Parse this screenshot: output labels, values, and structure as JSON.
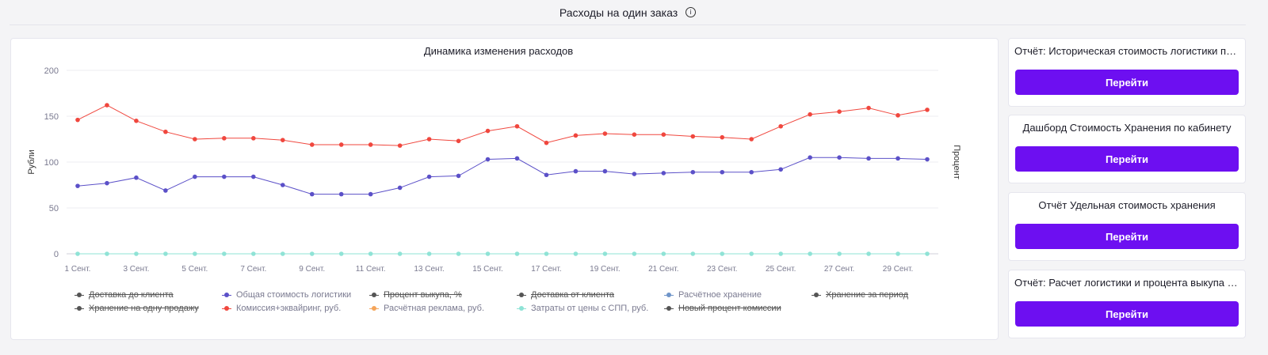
{
  "header": {
    "title": "Расходы на один заказ",
    "info_icon": "info-icon"
  },
  "chart_data": {
    "type": "line",
    "title": "Динамика изменения расходов",
    "ylabel": "Рубли",
    "y2label": "Процент",
    "ylim": [
      0,
      200
    ],
    "yticks": [
      0,
      50,
      100,
      150,
      200
    ],
    "x": [
      "1 Сент.",
      "2 Сент.",
      "3 Сент.",
      "4 Сент.",
      "5 Сент.",
      "6 Сент.",
      "7 Сент.",
      "8 Сент.",
      "9 Сент.",
      "10 Сент.",
      "11 Сент.",
      "12 Сент.",
      "13 Сент.",
      "14 Сент.",
      "15 Сент.",
      "16 Сент.",
      "17 Сент.",
      "18 Сент.",
      "19 Сент.",
      "20 Сент.",
      "21 Сент.",
      "22 Сент.",
      "23 Сент.",
      "24 Сент.",
      "25 Сент.",
      "26 Сент.",
      "27 Сент.",
      "28 Сент.",
      "29 Сент.",
      "30 Сент."
    ],
    "xtick_labels": [
      "1 Сент.",
      "3 Сент.",
      "5 Сент.",
      "7 Сент.",
      "9 Сент.",
      "11 Сент.",
      "13 Сент.",
      "15 Сент.",
      "17 Сент.",
      "19 Сент.",
      "21 Сент.",
      "23 Сент.",
      "25 Сент.",
      "27 Сент.",
      "29 Сент."
    ],
    "grid": true,
    "legend_position": "bottom",
    "series": [
      {
        "name": "Комиссия+эквайринг, руб.",
        "color": "#f0473e",
        "values": [
          146,
          162,
          145,
          133,
          125,
          126,
          126,
          124,
          119,
          119,
          119,
          118,
          125,
          123,
          134,
          139,
          121,
          129,
          131,
          130,
          130,
          128,
          127,
          125,
          139,
          152,
          155,
          159,
          151,
          157
        ]
      },
      {
        "name": "Общая стоимость логистики",
        "color": "#5b50c8",
        "values": [
          74,
          77,
          83,
          69,
          84,
          84,
          84,
          75,
          65,
          65,
          65,
          72,
          84,
          85,
          103,
          104,
          86,
          90,
          90,
          87,
          88,
          89,
          89,
          89,
          92,
          105,
          105,
          104,
          104,
          103
        ]
      },
      {
        "name": "Затраты от цены с СПП, руб.",
        "color": "#8fe3d6",
        "values": [
          0,
          0,
          0,
          0,
          0,
          0,
          0,
          0,
          0,
          0,
          0,
          0,
          0,
          0,
          0,
          0,
          0,
          0,
          0,
          0,
          0,
          0,
          0,
          0,
          0,
          0,
          0,
          0,
          0,
          0
        ]
      }
    ],
    "legend": [
      {
        "label": "Доставка до клиента",
        "color": "#555555",
        "active": false
      },
      {
        "label": "Общая стоимость логистики",
        "color": "#5b50c8",
        "active": true
      },
      {
        "label": "Процент выкупа, %",
        "color": "#555555",
        "active": false
      },
      {
        "label": "Доставка от клиента",
        "color": "#555555",
        "active": false
      },
      {
        "label": "Расчётное хранение",
        "color": "#6f95c9",
        "active": true
      },
      {
        "label": "Хранение за период",
        "color": "#555555",
        "active": false
      },
      {
        "label": "Хранение на одну продажу",
        "color": "#555555",
        "active": false
      },
      {
        "label": "Комиссия+эквайринг, руб.",
        "color": "#f0473e",
        "active": true
      },
      {
        "label": "Расчётная реклама, руб.",
        "color": "#f5a55a",
        "active": true
      },
      {
        "label": "Затраты от цены с СПП, руб.",
        "color": "#8fe3d6",
        "active": true
      },
      {
        "label": "Новый процент комиссии",
        "color": "#555555",
        "active": false
      }
    ]
  },
  "side_cards": [
    {
      "title": "Отчёт: Историческая стоимость логистики по номенклатурам",
      "button": "Перейти"
    },
    {
      "title": "Дашборд Стоимость Хранения по кабинету",
      "button": "Перейти"
    },
    {
      "title": "Отчёт Удельная стоимость хранения",
      "button": "Перейти"
    },
    {
      "title": "Отчёт: Расчет логистики и процента выкупа по товарам",
      "button": "Перейти"
    }
  ],
  "colors": {
    "accent": "#6d0ff1"
  }
}
